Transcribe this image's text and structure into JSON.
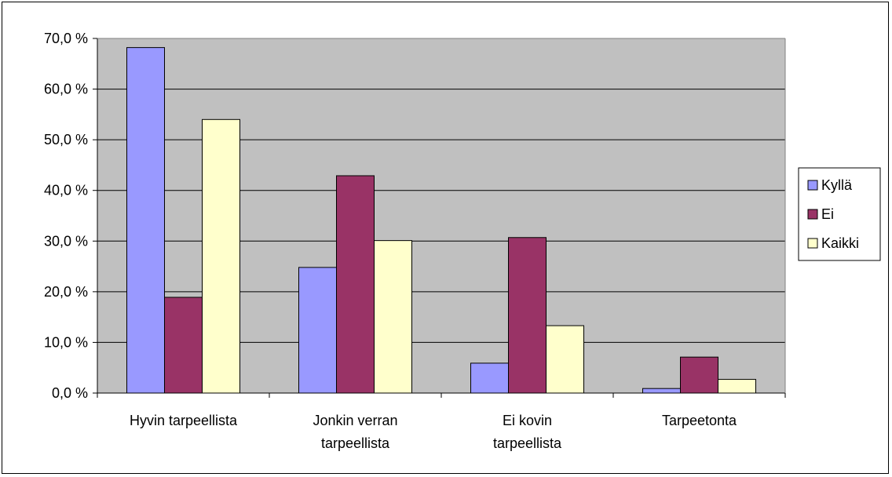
{
  "chart_data": {
    "type": "bar",
    "categories": [
      [
        "Hyvin tarpeellista"
      ],
      [
        "Jonkin verran",
        "tarpeellista"
      ],
      [
        "Ei kovin",
        "tarpeellista"
      ],
      [
        "Tarpeetonta"
      ]
    ],
    "series": [
      {
        "name": "Kyllä",
        "color": "#9999FF",
        "values": [
          68.2,
          24.8,
          5.9,
          0.9
        ]
      },
      {
        "name": "Ei",
        "color": "#993366",
        "values": [
          18.9,
          42.9,
          30.7,
          7.1
        ]
      },
      {
        "name": "Kaikki",
        "color": "#FFFFCC",
        "values": [
          54.0,
          30.1,
          13.3,
          2.7
        ]
      }
    ],
    "ylim": [
      0,
      70
    ],
    "ytick_step": 10,
    "ytick_labels": [
      "0,0 %",
      "10,0 %",
      "20,0 %",
      "30,0 %",
      "40,0 %",
      "50,0 %",
      "60,0 %",
      "70,0 %"
    ],
    "plot_background": "#C0C0C0",
    "grid": true,
    "legend_position": "right"
  }
}
